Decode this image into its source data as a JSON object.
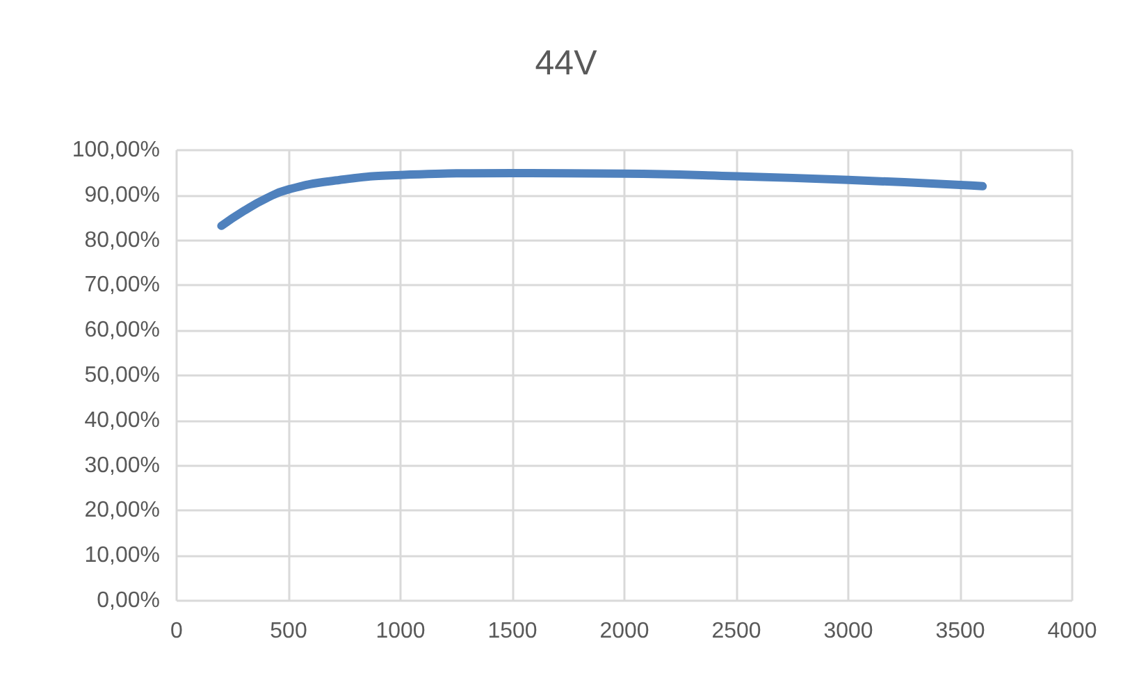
{
  "chart_data": {
    "type": "line",
    "title": "44V",
    "x": [
      200,
      300,
      400,
      500,
      700,
      1000,
      1500,
      2000,
      2500,
      3000,
      3500,
      3600
    ],
    "series": [
      {
        "color": "#4f81bd",
        "values": [
          83.2,
          86.5,
          89.3,
          91.3,
          93.2,
          94.5,
          94.9,
          94.8,
          94.2,
          93.4,
          92.3,
          92.0
        ]
      }
    ],
    "xlim": [
      0,
      4000
    ],
    "xticks": [
      0,
      500,
      1000,
      1500,
      2000,
      2500,
      3000,
      3500,
      4000
    ],
    "ylim": [
      0,
      100
    ],
    "yticks": [
      {
        "value": 0,
        "label": "0,00%"
      },
      {
        "value": 10,
        "label": "10,00%"
      },
      {
        "value": 20,
        "label": "20,00%"
      },
      {
        "value": 30,
        "label": "30,00%"
      },
      {
        "value": 40,
        "label": "40,00%"
      },
      {
        "value": 50,
        "label": "50,00%"
      },
      {
        "value": 60,
        "label": "60,00%"
      },
      {
        "value": 70,
        "label": "70,00%"
      },
      {
        "value": 80,
        "label": "80,00%"
      },
      {
        "value": 90,
        "label": "90,00%"
      },
      {
        "value": 100,
        "label": "100,00%"
      }
    ],
    "grid": true,
    "marker": "none",
    "line_style": "solid"
  }
}
